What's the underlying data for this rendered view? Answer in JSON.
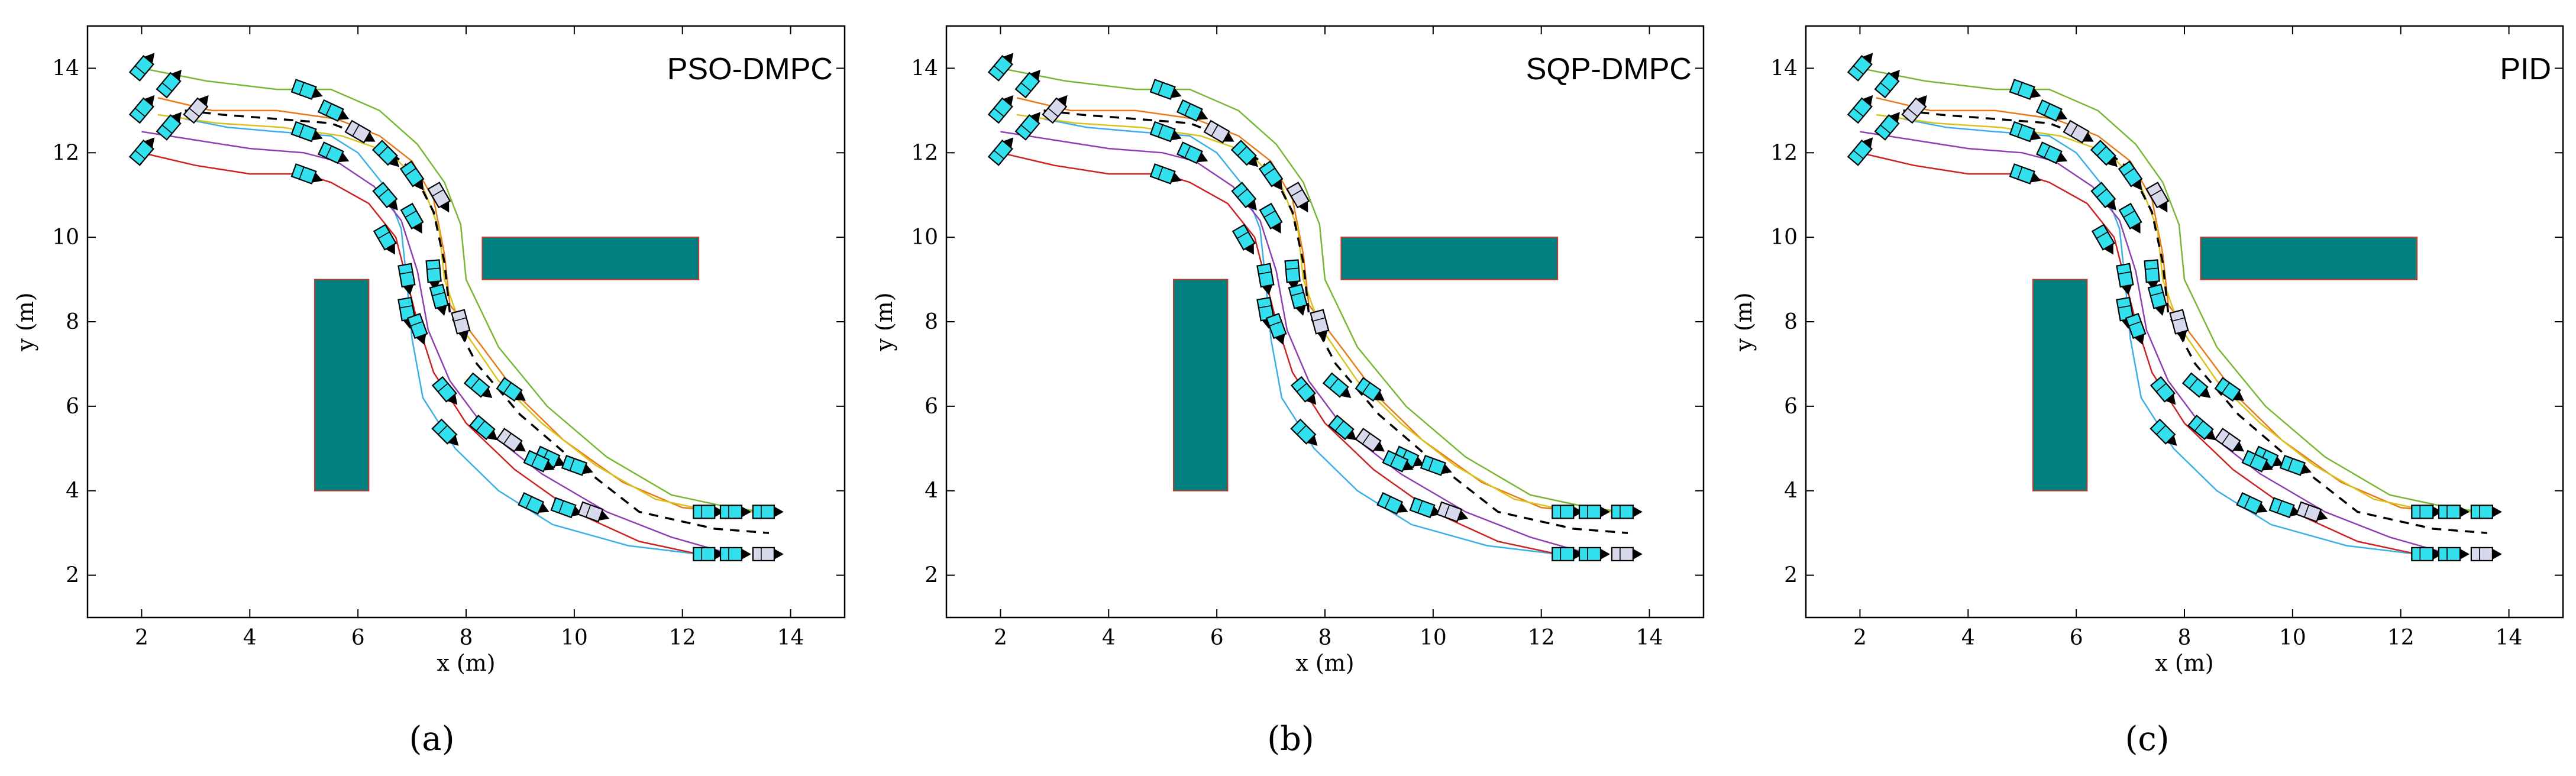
{
  "colors": {
    "obstacle": "#008080",
    "obstacle_edge": "#c0392b",
    "vehicle": "#33e0ee",
    "vehicle_leader": "#d9d9ee",
    "series": [
      "#3cb0e6",
      "#cc2222",
      "#8e3fb0",
      "#e87a1a",
      "#d8c21c",
      "#77b733"
    ],
    "reference": "#000000"
  },
  "chart_data": [
    {
      "type": "line",
      "panel": "a",
      "title": "PSO-DMPC",
      "caption": "(a)",
      "xlabel": "x (m)",
      "ylabel": "y (m)",
      "xlim": [
        1,
        15
      ],
      "ylim": [
        1,
        15
      ],
      "xticks": [
        2,
        4,
        6,
        8,
        10,
        12,
        14
      ],
      "yticks": [
        2,
        4,
        6,
        8,
        10,
        12,
        14
      ],
      "grid": false
    },
    {
      "type": "line",
      "panel": "b",
      "title": "SQP-DMPC",
      "caption": "(b)",
      "xlabel": "x (m)",
      "ylabel": "y (m)",
      "xlim": [
        1,
        15
      ],
      "ylim": [
        1,
        15
      ],
      "xticks": [
        2,
        4,
        6,
        8,
        10,
        12,
        14
      ],
      "yticks": [
        2,
        4,
        6,
        8,
        10,
        12,
        14
      ],
      "grid": false
    },
    {
      "type": "line",
      "panel": "c",
      "title": "PID",
      "caption": "(c)",
      "xlabel": "x (m)",
      "ylabel": "y (m)",
      "xlim": [
        1,
        15
      ],
      "ylim": [
        1,
        15
      ],
      "xticks": [
        2,
        4,
        6,
        8,
        10,
        12,
        14
      ],
      "yticks": [
        2,
        4,
        6,
        8,
        10,
        12,
        14
      ],
      "grid": false
    }
  ],
  "shared": {
    "obstacles": [
      {
        "name": "vertical-obstacle",
        "x0": 5.2,
        "x1": 6.2,
        "y0": 4.0,
        "y1": 9.0
      },
      {
        "name": "horizontal-obstacle",
        "x0": 8.3,
        "x1": 12.3,
        "y0": 9.0,
        "y1": 10.0
      }
    ],
    "reference_path": [
      [
        2.8,
        13.0
      ],
      [
        3.5,
        12.9
      ],
      [
        4.5,
        12.8
      ],
      [
        5.5,
        12.7
      ],
      [
        6.3,
        12.3
      ],
      [
        7.0,
        11.6
      ],
      [
        7.4,
        10.6
      ],
      [
        7.6,
        9.4
      ],
      [
        7.7,
        8.2
      ],
      [
        8.2,
        7.0
      ],
      [
        9.0,
        5.8
      ],
      [
        10.0,
        4.7
      ],
      [
        11.2,
        3.5
      ],
      [
        12.6,
        3.1
      ],
      [
        13.6,
        3.0
      ]
    ],
    "series": [
      {
        "name": "vehicle-1",
        "points": [
          [
            2.8,
            12.8
          ],
          [
            3.6,
            12.6
          ],
          [
            4.5,
            12.5
          ],
          [
            5.5,
            12.4
          ],
          [
            6.0,
            12.0
          ],
          [
            6.5,
            11.2
          ],
          [
            6.8,
            10.2
          ],
          [
            6.9,
            9.0
          ],
          [
            7.0,
            7.6
          ],
          [
            7.2,
            6.2
          ],
          [
            7.8,
            5.0
          ],
          [
            8.6,
            4.0
          ],
          [
            9.6,
            3.2
          ],
          [
            11.0,
            2.7
          ],
          [
            12.3,
            2.5
          ]
        ]
      },
      {
        "name": "vehicle-2",
        "points": [
          [
            2.0,
            12.0
          ],
          [
            3.0,
            11.7
          ],
          [
            4.0,
            11.5
          ],
          [
            5.0,
            11.5
          ],
          [
            5.5,
            11.3
          ],
          [
            6.2,
            10.8
          ],
          [
            6.7,
            10.0
          ],
          [
            6.9,
            9.0
          ],
          [
            7.1,
            8.0
          ],
          [
            7.4,
            6.8
          ],
          [
            8.0,
            5.6
          ],
          [
            8.9,
            4.5
          ],
          [
            10.0,
            3.5
          ],
          [
            11.2,
            2.8
          ],
          [
            12.3,
            2.5
          ]
        ]
      },
      {
        "name": "vehicle-3",
        "points": [
          [
            2.0,
            12.5
          ],
          [
            3.0,
            12.3
          ],
          [
            4.0,
            12.1
          ],
          [
            5.0,
            12.0
          ],
          [
            5.6,
            11.8
          ],
          [
            6.3,
            11.2
          ],
          [
            6.8,
            10.4
          ],
          [
            7.1,
            9.2
          ],
          [
            7.3,
            7.8
          ],
          [
            7.7,
            6.6
          ],
          [
            8.4,
            5.4
          ],
          [
            9.4,
            4.4
          ],
          [
            10.6,
            3.5
          ],
          [
            11.8,
            2.9
          ],
          [
            12.9,
            2.5
          ]
        ]
      },
      {
        "name": "vehicle-4",
        "points": [
          [
            2.3,
            13.3
          ],
          [
            3.3,
            13.0
          ],
          [
            4.5,
            13.0
          ],
          [
            5.6,
            12.8
          ],
          [
            6.4,
            12.4
          ],
          [
            7.0,
            11.8
          ],
          [
            7.4,
            10.9
          ],
          [
            7.6,
            9.6
          ],
          [
            7.7,
            8.4
          ],
          [
            8.3,
            7.4
          ],
          [
            9.0,
            6.2
          ],
          [
            9.8,
            5.2
          ],
          [
            10.9,
            4.2
          ],
          [
            12.0,
            3.6
          ],
          [
            12.9,
            3.5
          ]
        ]
      },
      {
        "name": "vehicle-5",
        "points": [
          [
            2.3,
            12.9
          ],
          [
            3.4,
            12.7
          ],
          [
            4.6,
            12.6
          ],
          [
            5.7,
            12.4
          ],
          [
            6.6,
            12.0
          ],
          [
            7.2,
            11.2
          ],
          [
            7.5,
            10.2
          ],
          [
            7.6,
            9.0
          ],
          [
            7.9,
            7.9
          ],
          [
            8.6,
            6.6
          ],
          [
            9.4,
            5.6
          ],
          [
            10.4,
            4.6
          ],
          [
            11.5,
            3.8
          ],
          [
            12.6,
            3.5
          ],
          [
            13.5,
            3.5
          ]
        ]
      },
      {
        "name": "vehicle-6",
        "points": [
          [
            2.0,
            14.0
          ],
          [
            3.2,
            13.7
          ],
          [
            4.5,
            13.5
          ],
          [
            5.5,
            13.5
          ],
          [
            6.4,
            13.0
          ],
          [
            7.1,
            12.2
          ],
          [
            7.6,
            11.3
          ],
          [
            7.9,
            10.3
          ],
          [
            8.0,
            9.0
          ],
          [
            8.6,
            7.4
          ],
          [
            9.5,
            6.0
          ],
          [
            10.6,
            4.8
          ],
          [
            11.8,
            3.9
          ],
          [
            12.9,
            3.6
          ],
          [
            13.5,
            3.5
          ]
        ]
      }
    ],
    "vehicles": [
      {
        "x": 2.0,
        "y": 14.0,
        "a": 50,
        "leader": false
      },
      {
        "x": 2.5,
        "y": 13.6,
        "a": 50,
        "leader": false
      },
      {
        "x": 2.0,
        "y": 13.0,
        "a": 50,
        "leader": false
      },
      {
        "x": 2.5,
        "y": 12.6,
        "a": 50,
        "leader": false
      },
      {
        "x": 2.0,
        "y": 12.0,
        "a": 50,
        "leader": false
      },
      {
        "x": 3.0,
        "y": 13.0,
        "a": 50,
        "leader": true
      },
      {
        "x": 5.0,
        "y": 13.5,
        "a": -20,
        "leader": false
      },
      {
        "x": 5.5,
        "y": 13.0,
        "a": -25,
        "leader": false
      },
      {
        "x": 5.0,
        "y": 12.5,
        "a": -20,
        "leader": false
      },
      {
        "x": 5.5,
        "y": 12.0,
        "a": -25,
        "leader": false
      },
      {
        "x": 5.0,
        "y": 11.5,
        "a": -20,
        "leader": false
      },
      {
        "x": 6.0,
        "y": 12.5,
        "a": -30,
        "leader": true
      },
      {
        "x": 6.5,
        "y": 12.0,
        "a": -45,
        "leader": false
      },
      {
        "x": 7.0,
        "y": 11.5,
        "a": -55,
        "leader": false
      },
      {
        "x": 6.5,
        "y": 11.0,
        "a": -50,
        "leader": false
      },
      {
        "x": 7.0,
        "y": 10.5,
        "a": -60,
        "leader": false
      },
      {
        "x": 6.5,
        "y": 10.0,
        "a": -60,
        "leader": false
      },
      {
        "x": 7.5,
        "y": 11.0,
        "a": -60,
        "leader": true
      },
      {
        "x": 6.9,
        "y": 9.1,
        "a": -80,
        "leader": false
      },
      {
        "x": 7.4,
        "y": 9.2,
        "a": -85,
        "leader": false
      },
      {
        "x": 6.9,
        "y": 8.3,
        "a": -80,
        "leader": false
      },
      {
        "x": 7.5,
        "y": 8.6,
        "a": -75,
        "leader": false
      },
      {
        "x": 7.1,
        "y": 7.9,
        "a": -70,
        "leader": false
      },
      {
        "x": 7.9,
        "y": 8.0,
        "a": -75,
        "leader": true
      },
      {
        "x": 7.6,
        "y": 6.4,
        "a": -50,
        "leader": false
      },
      {
        "x": 8.2,
        "y": 6.5,
        "a": -40,
        "leader": false
      },
      {
        "x": 7.6,
        "y": 5.4,
        "a": -45,
        "leader": false
      },
      {
        "x": 8.3,
        "y": 5.5,
        "a": -40,
        "leader": false
      },
      {
        "x": 8.8,
        "y": 6.4,
        "a": -35,
        "leader": false
      },
      {
        "x": 8.8,
        "y": 5.2,
        "a": -35,
        "leader": true
      },
      {
        "x": 9.5,
        "y": 4.8,
        "a": -25,
        "leader": false
      },
      {
        "x": 10.0,
        "y": 4.6,
        "a": -20,
        "leader": false
      },
      {
        "x": 9.2,
        "y": 3.7,
        "a": -25,
        "leader": false
      },
      {
        "x": 9.8,
        "y": 3.6,
        "a": -20,
        "leader": false
      },
      {
        "x": 9.3,
        "y": 4.7,
        "a": -25,
        "leader": false
      },
      {
        "x": 10.3,
        "y": 3.5,
        "a": -20,
        "leader": true
      },
      {
        "x": 12.4,
        "y": 3.5,
        "a": 0,
        "leader": false
      },
      {
        "x": 12.9,
        "y": 3.5,
        "a": 0,
        "leader": false
      },
      {
        "x": 13.5,
        "y": 3.5,
        "a": 0,
        "leader": false
      },
      {
        "x": 12.4,
        "y": 2.5,
        "a": 0,
        "leader": false
      },
      {
        "x": 12.9,
        "y": 2.5,
        "a": 0,
        "leader": false
      },
      {
        "x": 13.5,
        "y": 2.5,
        "a": 0,
        "leader": true
      }
    ]
  }
}
